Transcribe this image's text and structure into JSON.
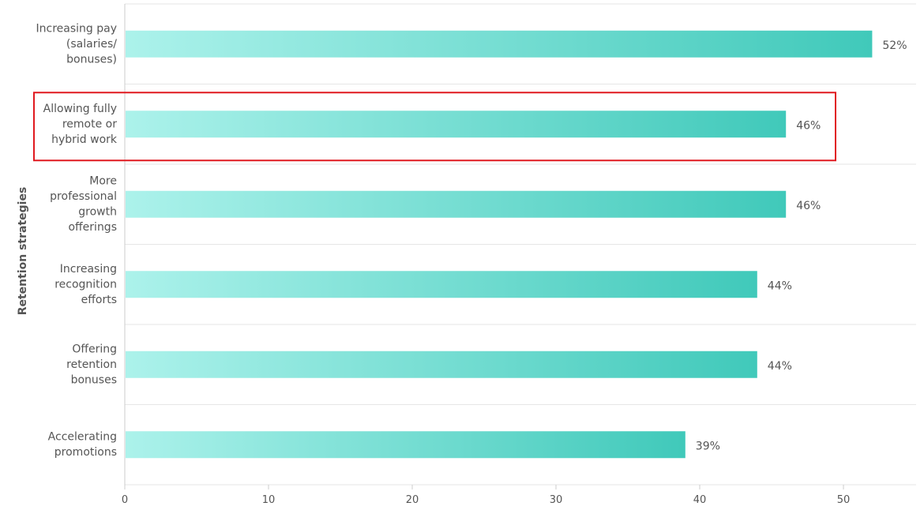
{
  "chart_data": {
    "type": "bar",
    "orientation": "horizontal",
    "categories": [
      [
        "Increasing pay",
        "(salaries/",
        "bonuses)"
      ],
      [
        "Allowing fully",
        "remote or",
        "hybrid work"
      ],
      [
        "More",
        "professional",
        "growth",
        "offerings"
      ],
      [
        "Increasing",
        "recognition",
        "efforts"
      ],
      [
        "Offering",
        "retention",
        "bonuses"
      ],
      [
        "Accelerating",
        "promotions"
      ]
    ],
    "values": [
      52,
      46,
      46,
      44,
      44,
      39
    ],
    "value_labels": [
      "52%",
      "46%",
      "46%",
      "44%",
      "44%",
      "39%"
    ],
    "ylabel": "Retention strategies",
    "xlabel": "",
    "xlim": [
      0,
      55
    ],
    "xticks": [
      0,
      10,
      20,
      30,
      40,
      50
    ],
    "highlighted_category_index": 1,
    "grid": "horizontal separators between categories",
    "colors": {
      "bar_start": "#ACF2EB",
      "bar_end": "#40C9BA",
      "highlight_box": "#E0191F",
      "grid": "#E6E6E6",
      "axis": "#CCCCCC",
      "text": "#555555"
    }
  }
}
